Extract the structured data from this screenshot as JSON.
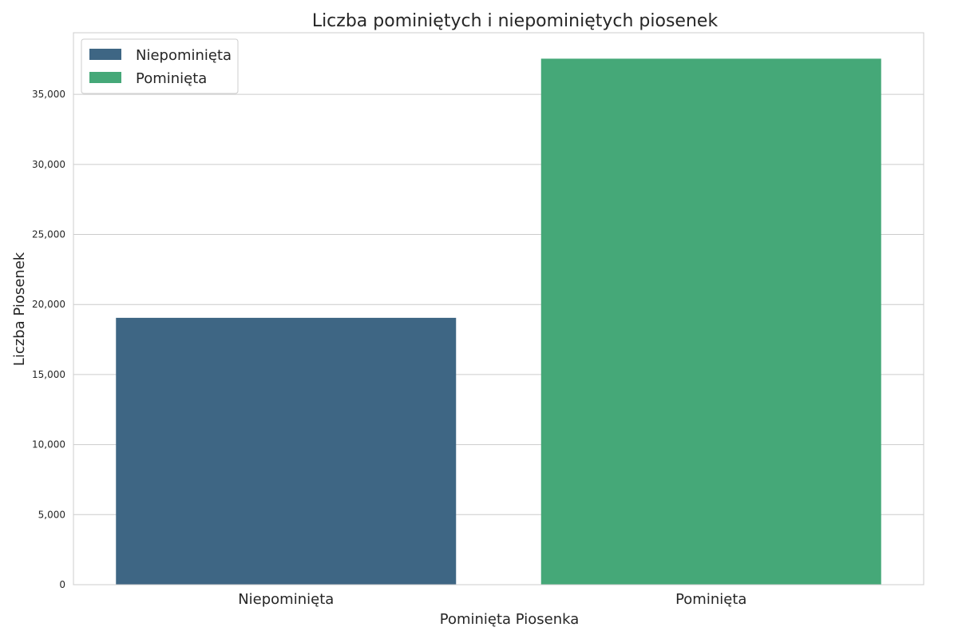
{
  "chart_data": {
    "type": "bar",
    "title": "Liczba pominiętych i niepominiętych piosenek",
    "xlabel": "Pominięta Piosenka",
    "ylabel": "Liczba Piosenek",
    "categories": [
      "Niepominięta",
      "Pominięta"
    ],
    "values": [
      19050,
      37550
    ],
    "colors": [
      "#3e6684",
      "#45a878"
    ],
    "ylim": [
      0,
      39400
    ],
    "yticks": [
      0,
      5000,
      10000,
      15000,
      20000,
      25000,
      30000,
      35000
    ],
    "ytick_labels": [
      "0",
      "5,000",
      "10,000",
      "15,000",
      "20,000",
      "25,000",
      "30,000",
      "35,000"
    ],
    "grid": true,
    "legend": {
      "placement": "top-left",
      "entries": [
        {
          "label": "Niepominięta",
          "color": "#3e6684"
        },
        {
          "label": "Pominięta",
          "color": "#45a878"
        }
      ]
    }
  }
}
